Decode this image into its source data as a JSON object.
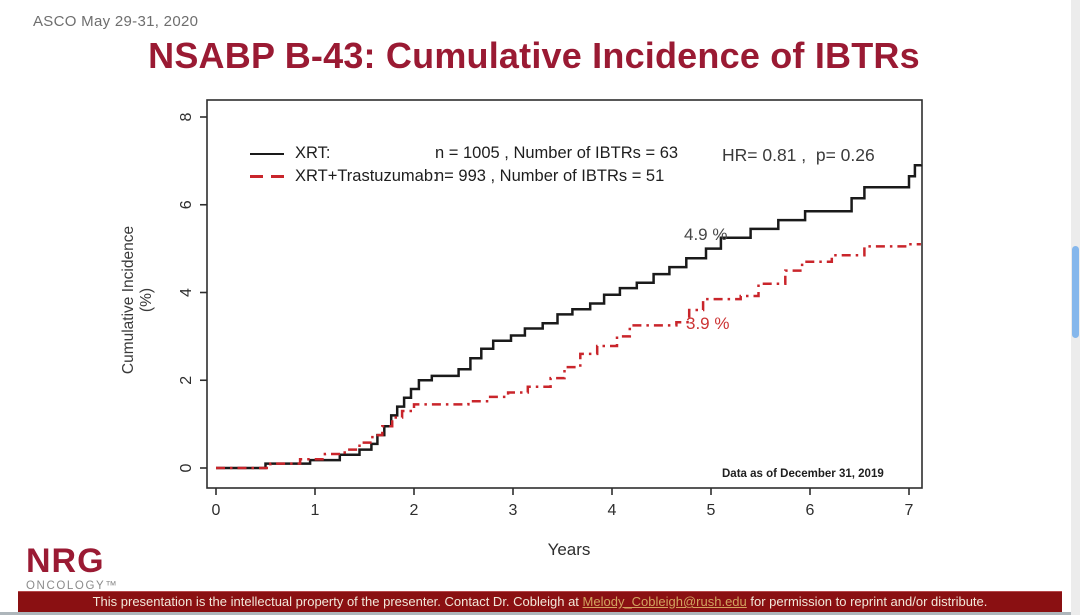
{
  "header": {
    "conference": "ASCO May 29-31, 2020",
    "title": "NSABP B-43: Cumulative Incidence of IBTRs"
  },
  "chart_data": {
    "type": "line",
    "subtype": "step-cumulative-incidence",
    "xlabel": "Years",
    "ylabel": "Cumulative Incidence (%)",
    "xlim": [
      0,
      7.3
    ],
    "ylim": [
      0,
      8
    ],
    "xticks": [
      0,
      1,
      2,
      3,
      4,
      5,
      6,
      7
    ],
    "yticks": [
      0,
      2,
      4,
      6,
      8
    ],
    "grid": false,
    "legend_position": "top-left-inside",
    "series": [
      {
        "name": "XRT",
        "n": 1005,
        "events": 63,
        "color": "#1a1a1a",
        "style": "solid",
        "points": [
          [
            0,
            0
          ],
          [
            0.5,
            0.1
          ],
          [
            0.95,
            0.18
          ],
          [
            1.25,
            0.3
          ],
          [
            1.45,
            0.42
          ],
          [
            1.57,
            0.55
          ],
          [
            1.63,
            0.75
          ],
          [
            1.7,
            0.95
          ],
          [
            1.77,
            1.2
          ],
          [
            1.83,
            1.4
          ],
          [
            1.9,
            1.6
          ],
          [
            1.97,
            1.8
          ],
          [
            2.05,
            2.0
          ],
          [
            2.18,
            2.1
          ],
          [
            2.45,
            2.25
          ],
          [
            2.57,
            2.5
          ],
          [
            2.68,
            2.72
          ],
          [
            2.8,
            2.9
          ],
          [
            2.98,
            3.02
          ],
          [
            3.12,
            3.18
          ],
          [
            3.3,
            3.3
          ],
          [
            3.45,
            3.5
          ],
          [
            3.6,
            3.62
          ],
          [
            3.78,
            3.75
          ],
          [
            3.92,
            3.95
          ],
          [
            4.08,
            4.1
          ],
          [
            4.25,
            4.22
          ],
          [
            4.42,
            4.42
          ],
          [
            4.58,
            4.58
          ],
          [
            4.75,
            4.78
          ],
          [
            4.95,
            5.0
          ],
          [
            5.1,
            5.25
          ],
          [
            5.4,
            5.45
          ],
          [
            5.68,
            5.65
          ],
          [
            5.95,
            5.85
          ],
          [
            6.42,
            6.15
          ],
          [
            6.55,
            6.4
          ],
          [
            7.0,
            6.65
          ],
          [
            7.06,
            6.9
          ],
          [
            7.12,
            6.92
          ]
        ]
      },
      {
        "name": "XRT+Trastuzumab",
        "n": 993,
        "events": 51,
        "color": "#c9252b",
        "style": "dashdot",
        "points": [
          [
            0,
            0
          ],
          [
            0.55,
            0.1
          ],
          [
            0.85,
            0.2
          ],
          [
            1.1,
            0.32
          ],
          [
            1.3,
            0.42
          ],
          [
            1.45,
            0.58
          ],
          [
            1.58,
            0.75
          ],
          [
            1.68,
            0.95
          ],
          [
            1.78,
            1.15
          ],
          [
            1.88,
            1.3
          ],
          [
            2.0,
            1.45
          ],
          [
            2.55,
            1.52
          ],
          [
            2.75,
            1.62
          ],
          [
            2.95,
            1.72
          ],
          [
            3.15,
            1.85
          ],
          [
            3.38,
            2.05
          ],
          [
            3.52,
            2.3
          ],
          [
            3.68,
            2.6
          ],
          [
            3.85,
            2.78
          ],
          [
            4.05,
            3.0
          ],
          [
            4.18,
            3.25
          ],
          [
            4.65,
            3.32
          ],
          [
            4.78,
            3.6
          ],
          [
            4.92,
            3.85
          ],
          [
            5.3,
            3.92
          ],
          [
            5.48,
            4.2
          ],
          [
            5.75,
            4.5
          ],
          [
            5.92,
            4.7
          ],
          [
            6.22,
            4.85
          ],
          [
            6.55,
            5.05
          ],
          [
            7.0,
            5.1
          ],
          [
            7.12,
            5.1
          ]
        ]
      }
    ],
    "annotations": [
      {
        "text": "4.9 %",
        "series": "XRT"
      },
      {
        "text": "3.9 %",
        "series": "XRT+Trastuzumab"
      }
    ],
    "hr_text": "HR= 0.81 ,  p= 0.26",
    "note": "Data as of December 31, 2019"
  },
  "legend": {
    "rows": [
      {
        "label": "XRT:",
        "stats": "n = 1005 , Number of IBTRs = 63"
      },
      {
        "label": "XRT+Trastuzumab:",
        "stats": "n= 993 , Number of IBTRs = 51"
      }
    ]
  },
  "logo": {
    "name": "NRG",
    "sub": "ONCOLOGY™"
  },
  "footer": {
    "pre": "This presentation is the intellectual property of the presenter. Contact Dr. Cobleigh at ",
    "link": "Melody_Cobleigh@rush.edu",
    "post": " for permission to reprint and/or distribute."
  },
  "colors": {
    "title_maroon": "#9a1a33",
    "footer_bg": "#8a1012",
    "footer_link_gold": "#d2a35f",
    "curve_black": "#1a1a1a",
    "curve_red": "#c9252b",
    "scrollbar_thumb_blue": "#85b7ec"
  }
}
